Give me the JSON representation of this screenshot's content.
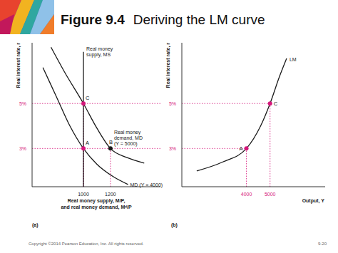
{
  "slide": {
    "figure": "Figure 9.4",
    "title": "Deriving the LM curve",
    "copyright": "Copyright ©2014 Pearson Education, Inc. All rights reserved.",
    "page": "9-20"
  },
  "chart_data": [
    {
      "type": "line",
      "title": "(a)",
      "xlabel": [
        "Real money supply, M/P,",
        "and real money demand, Mᵈ/P"
      ],
      "ylabel": "Real interest rate, r",
      "xlim": [
        620,
        1570
      ],
      "ylim": [
        1.3,
        7.7
      ],
      "xticks": [
        1000,
        1200
      ],
      "yticks": [
        {
          "value": 3,
          "label": "3%"
        },
        {
          "value": 5,
          "label": "5%"
        }
      ],
      "grid": false,
      "series": [
        {
          "name": "Real money supply, MS",
          "color": "#1a1a1a",
          "x": [
            1000,
            1000
          ],
          "values": [
            1.3,
            7.3
          ]
        },
        {
          "name": "Real money demand, MD (Y = 5000)",
          "color": "#1a1a1a",
          "x": [
            760,
            860,
            1000,
            1100,
            1200,
            1320,
            1450
          ],
          "values": [
            7.5,
            6.4,
            5,
            3.9,
            3,
            2.6,
            2.35
          ]
        },
        {
          "name": "MD (Y = 4000)",
          "color": "#1a1a1a",
          "x": [
            700,
            800,
            900,
            1000,
            1100,
            1220,
            1330
          ],
          "values": [
            6.6,
            5.3,
            4.0,
            3,
            2.3,
            1.75,
            1.4
          ]
        }
      ],
      "points": {
        "labels": [
          "C",
          "A",
          "B"
        ],
        "x": [
          1000,
          1000,
          1200
        ],
        "values": [
          5,
          3,
          3
        ],
        "colors": [
          "#d5177b",
          "#d5177b",
          "#1a1a1a"
        ],
        "marker": "circle"
      }
    },
    {
      "type": "line",
      "title": "(b)",
      "xlabel": [
        "Output, Y"
      ],
      "ylabel": "Real interest rate, r",
      "xlim": [
        1270,
        7330
      ],
      "ylim": [
        1.3,
        7.7
      ],
      "xticks": [
        4000,
        5000
      ],
      "yticks": [
        {
          "value": 3,
          "label": "3%"
        },
        {
          "value": 5,
          "label": "5%"
        }
      ],
      "grid": false,
      "series": [
        {
          "name": "LM",
          "color": "#1a1a1a",
          "x": [
            1900,
            3000,
            4000,
            4600,
            5000,
            5400,
            5700
          ],
          "values": [
            2.0,
            2.4,
            3,
            4,
            5,
            6.2,
            7.0
          ]
        }
      ],
      "points": {
        "labels": [
          "A",
          "C"
        ],
        "x": [
          4000,
          5000
        ],
        "values": [
          3,
          5
        ],
        "colors": [
          "#d5177b",
          "#d5177b"
        ],
        "marker": "circle"
      }
    }
  ]
}
